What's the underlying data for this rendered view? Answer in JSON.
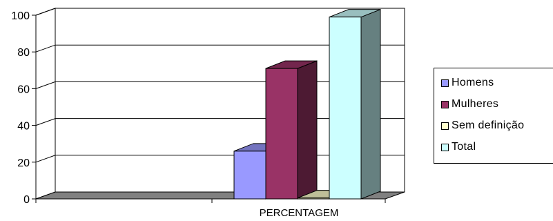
{
  "chart_data": {
    "type": "bar",
    "categories": [
      "PERCENTAGEM"
    ],
    "series": [
      {
        "name": "Homens",
        "values": [
          26
        ],
        "color": "#9999FF"
      },
      {
        "name": "Mulheres",
        "values": [
          71
        ],
        "color": "#993366"
      },
      {
        "name": "Sem definição",
        "values": [
          0.5
        ],
        "color": "#FFFFCC"
      },
      {
        "name": "Total",
        "values": [
          99
        ],
        "color": "#CCFFFF"
      }
    ],
    "yticks": [
      0,
      20,
      40,
      60,
      80,
      100
    ],
    "ylim": [
      0,
      100
    ],
    "grid": true,
    "legend_position": "right",
    "three_d": true
  }
}
